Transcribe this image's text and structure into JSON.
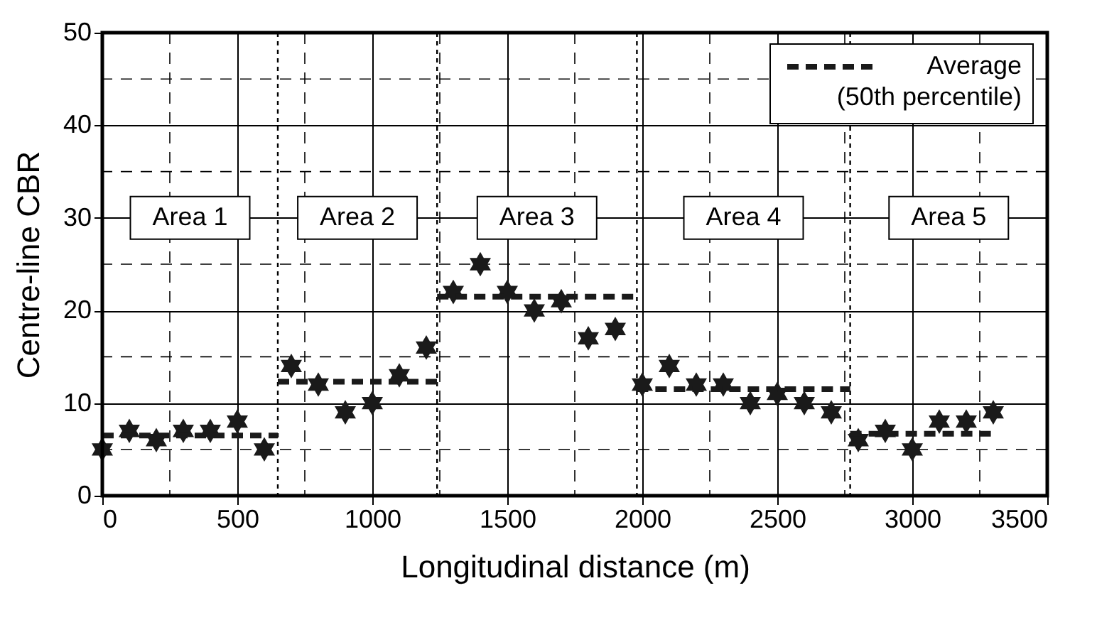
{
  "chart_data": {
    "type": "scatter",
    "xlabel": "Longitudinal distance (m)",
    "ylabel": "Centre-line CBR",
    "xlim": [
      0,
      3500
    ],
    "ylim": [
      0,
      50
    ],
    "xticks": [
      0,
      500,
      1000,
      1500,
      2000,
      2500,
      3000,
      3500
    ],
    "yticks": [
      0,
      10,
      20,
      30,
      40,
      50
    ],
    "grid": true,
    "legend": "top right",
    "series": [
      {
        "color": "#1a1a1a",
        "marker": "star",
        "x": [
          0,
          100,
          200,
          300,
          400,
          500,
          600,
          700,
          800,
          900,
          1000,
          1100,
          1200,
          1300,
          1400,
          1500,
          1600,
          1700,
          1800,
          1900,
          2000,
          2100,
          2200,
          2300,
          2400,
          2500,
          2600,
          2700,
          2800,
          2900,
          3000,
          3100,
          3200,
          3300
        ],
        "values": [
          5,
          7,
          6,
          7,
          7,
          8,
          5,
          14,
          12,
          9,
          10,
          13,
          16,
          22,
          25,
          22,
          20,
          21,
          17,
          18,
          12,
          14,
          12,
          12,
          10,
          11,
          10,
          9,
          6,
          7,
          5,
          8,
          8,
          9
        ]
      },
      {
        "type": "line",
        "name": "Average\n(50th percentile)",
        "color": "#1a1a1a",
        "line_style": "dashed",
        "x": [
          0,
          650
        ],
        "values": [
          6.5,
          6.5
        ]
      },
      {
        "type": "line",
        "color": "#1a1a1a",
        "line_style": "dashed",
        "x": [
          650,
          1240
        ],
        "values": [
          12.3,
          12.3
        ]
      },
      {
        "type": "line",
        "color": "#1a1a1a",
        "line_style": "dashed",
        "x": [
          1240,
          1980
        ],
        "values": [
          21.5,
          21.5
        ]
      },
      {
        "type": "line",
        "color": "#1a1a1a",
        "line_style": "dashed",
        "x": [
          1980,
          2770
        ],
        "values": [
          11.5,
          11.5
        ]
      },
      {
        "type": "line",
        "color": "#1a1a1a",
        "line_style": "dashed",
        "x": [
          2770,
          3300
        ],
        "values": [
          6.7,
          6.7
        ]
      }
    ],
    "ref_lines": [
      {
        "axis": "x",
        "value": 650,
        "line_style": "dotted"
      },
      {
        "axis": "x",
        "value": 1240,
        "line_style": "dotted"
      },
      {
        "axis": "x",
        "value": 1980,
        "line_style": "dotted"
      },
      {
        "axis": "x",
        "value": 2770,
        "line_style": "dotted"
      }
    ],
    "annotations": [
      "Area 1",
      "Area 2",
      "Area 3",
      "Area 4",
      "Area 5"
    ]
  }
}
